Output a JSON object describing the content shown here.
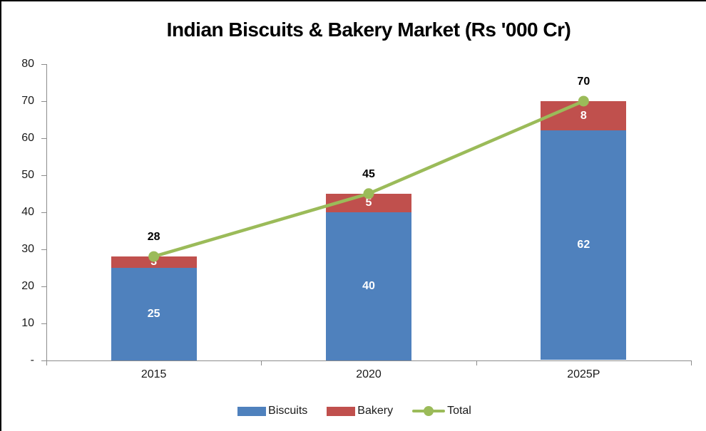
{
  "chart_data": {
    "type": "bar",
    "subtype": "stacked-column-with-line",
    "title": "Indian Biscuits & Bakery Market (Rs '000 Cr)",
    "categories": [
      "2015",
      "2020",
      "2025P"
    ],
    "series": [
      {
        "name": "Biscuits",
        "type": "bar",
        "color": "#4F81BD",
        "values": [
          25,
          40,
          62
        ]
      },
      {
        "name": "Bakery",
        "type": "bar",
        "color": "#C0504D",
        "values": [
          3,
          5,
          8
        ]
      },
      {
        "name": "Total",
        "type": "line",
        "color": "#9BBB59",
        "values": [
          28,
          45,
          70
        ]
      }
    ],
    "xlabel": "",
    "ylabel": "",
    "ylim": [
      0,
      80
    ],
    "ytick_step": 10,
    "yticks": [
      "-",
      "10",
      "20",
      "30",
      "40",
      "50",
      "60",
      "70",
      "80"
    ],
    "grid": false,
    "legend_position": "bottom",
    "colors": {
      "axis_line": "#8C8C8C",
      "tick_text": "#1A1A1A",
      "title_text": "#000000",
      "bar_value_text": "#FFFFFF",
      "total_value_text": "#000000",
      "background": "#FFFFFF",
      "frame_border": "#000000"
    }
  }
}
